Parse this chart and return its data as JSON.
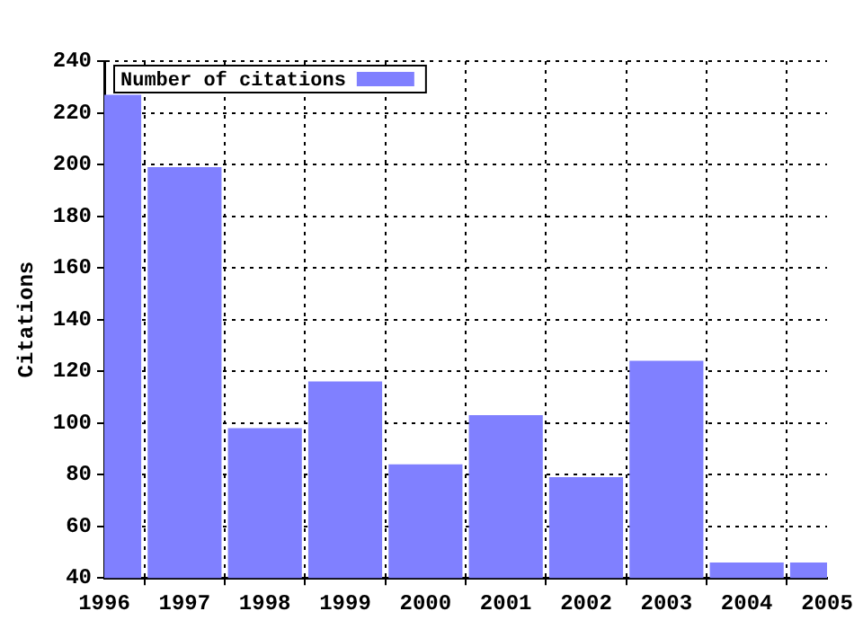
{
  "chart_data": {
    "type": "bar",
    "ylabel": "Citations",
    "x": [
      1996,
      1997,
      1998,
      1999,
      2000,
      2001,
      2002,
      2003,
      2004,
      2005
    ],
    "series": [
      {
        "name": "Number of citations",
        "color": "#8080ff",
        "values": [
          227,
          199,
          98,
          116,
          84,
          103,
          79,
          124,
          46,
          46
        ]
      }
    ],
    "xlim": [
      1996,
      2005
    ],
    "xticks": [
      1996,
      1997,
      1998,
      1999,
      2000,
      2001,
      2002,
      2003,
      2004,
      2005
    ],
    "ylim": [
      40,
      240
    ],
    "yticks": [
      40,
      60,
      80,
      100,
      120,
      140,
      160,
      180,
      200,
      220,
      240
    ],
    "grid": true,
    "legend": "top left"
  }
}
